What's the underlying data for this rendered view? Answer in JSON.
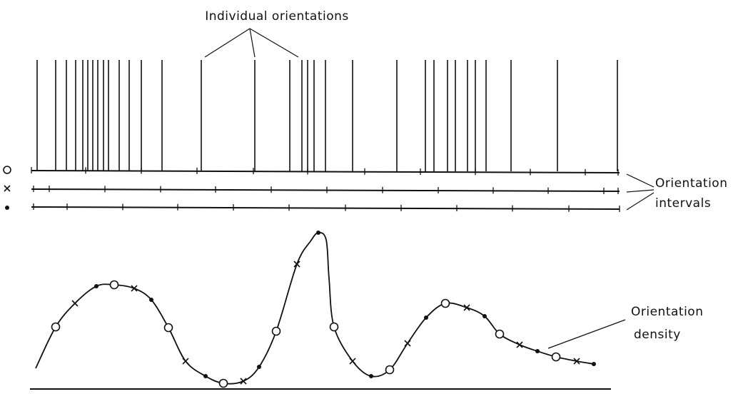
{
  "labels": {
    "individual_orientations": "Individual orientations",
    "orientation_intervals_line1": "Orientation",
    "orientation_intervals_line2": "intervals",
    "orientation_density_line1": "Orientation",
    "orientation_density_line2": "density"
  },
  "row_markers": [
    {
      "symbol": "open-circle"
    },
    {
      "symbol": "cross"
    },
    {
      "symbol": "dot"
    }
  ],
  "density_markers": [
    {
      "symbol": "circle"
    },
    {
      "symbol": "cross"
    },
    {
      "symbol": "dot"
    },
    {
      "symbol": "circle"
    },
    {
      "symbol": "cross"
    },
    {
      "symbol": "dot"
    },
    {
      "symbol": "circle"
    },
    {
      "symbol": "cross"
    },
    {
      "symbol": "dot"
    },
    {
      "symbol": "circle"
    },
    {
      "symbol": "cross"
    },
    {
      "symbol": "dot"
    },
    {
      "symbol": "circle"
    },
    {
      "symbol": "cross"
    },
    {
      "symbol": "dot"
    },
    {
      "symbol": "circle"
    },
    {
      "symbol": "cross"
    },
    {
      "symbol": "dot"
    },
    {
      "symbol": "circle"
    },
    {
      "symbol": "cross"
    },
    {
      "symbol": "dot"
    },
    {
      "symbol": "circle"
    },
    {
      "symbol": "cross"
    },
    {
      "symbol": "dot"
    },
    {
      "symbol": "circle"
    },
    {
      "symbol": "cross"
    },
    {
      "symbol": "dot"
    }
  ]
}
